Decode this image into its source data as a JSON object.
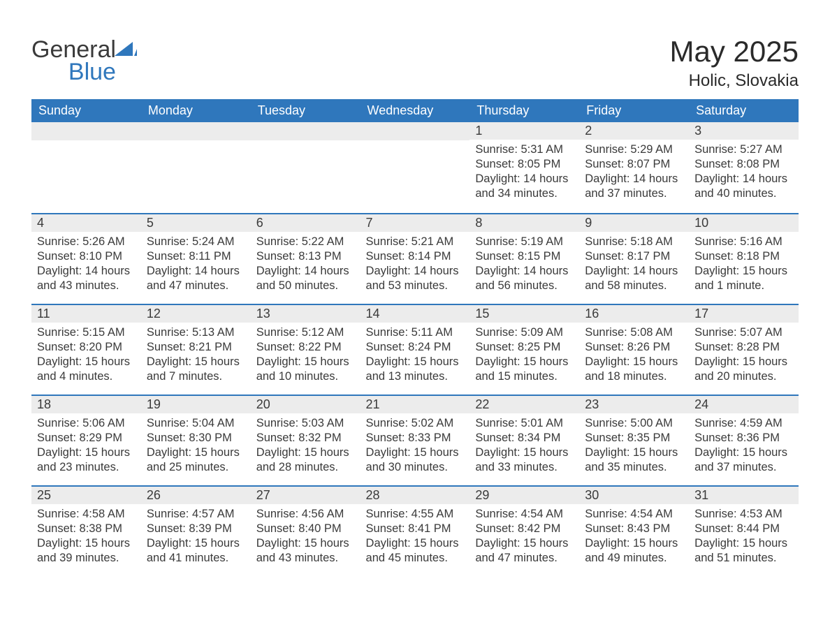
{
  "brand": {
    "general": "General",
    "blue": "Blue",
    "tri_color": "#2f77bc"
  },
  "title": "May 2025",
  "location": "Holic, Slovakia",
  "colors": {
    "header_bg": "#2f77bc",
    "header_text": "#ffffff",
    "daynum_bg": "#ececec",
    "rule": "#2f77bc",
    "text": "#3a3a3a",
    "page_bg": "#ffffff"
  },
  "labels": {
    "sunrise": "Sunrise:",
    "sunset": "Sunset:",
    "daylight": "Daylight:"
  },
  "weekdays": [
    "Sunday",
    "Monday",
    "Tuesday",
    "Wednesday",
    "Thursday",
    "Friday",
    "Saturday"
  ],
  "weeks": [
    [
      null,
      null,
      null,
      null,
      {
        "n": "1",
        "sunrise": "5:31 AM",
        "sunset": "8:05 PM",
        "daylight": "14 hours and 34 minutes."
      },
      {
        "n": "2",
        "sunrise": "5:29 AM",
        "sunset": "8:07 PM",
        "daylight": "14 hours and 37 minutes."
      },
      {
        "n": "3",
        "sunrise": "5:27 AM",
        "sunset": "8:08 PM",
        "daylight": "14 hours and 40 minutes."
      }
    ],
    [
      {
        "n": "4",
        "sunrise": "5:26 AM",
        "sunset": "8:10 PM",
        "daylight": "14 hours and 43 minutes."
      },
      {
        "n": "5",
        "sunrise": "5:24 AM",
        "sunset": "8:11 PM",
        "daylight": "14 hours and 47 minutes."
      },
      {
        "n": "6",
        "sunrise": "5:22 AM",
        "sunset": "8:13 PM",
        "daylight": "14 hours and 50 minutes."
      },
      {
        "n": "7",
        "sunrise": "5:21 AM",
        "sunset": "8:14 PM",
        "daylight": "14 hours and 53 minutes."
      },
      {
        "n": "8",
        "sunrise": "5:19 AM",
        "sunset": "8:15 PM",
        "daylight": "14 hours and 56 minutes."
      },
      {
        "n": "9",
        "sunrise": "5:18 AM",
        "sunset": "8:17 PM",
        "daylight": "14 hours and 58 minutes."
      },
      {
        "n": "10",
        "sunrise": "5:16 AM",
        "sunset": "8:18 PM",
        "daylight": "15 hours and 1 minute."
      }
    ],
    [
      {
        "n": "11",
        "sunrise": "5:15 AM",
        "sunset": "8:20 PM",
        "daylight": "15 hours and 4 minutes."
      },
      {
        "n": "12",
        "sunrise": "5:13 AM",
        "sunset": "8:21 PM",
        "daylight": "15 hours and 7 minutes."
      },
      {
        "n": "13",
        "sunrise": "5:12 AM",
        "sunset": "8:22 PM",
        "daylight": "15 hours and 10 minutes."
      },
      {
        "n": "14",
        "sunrise": "5:11 AM",
        "sunset": "8:24 PM",
        "daylight": "15 hours and 13 minutes."
      },
      {
        "n": "15",
        "sunrise": "5:09 AM",
        "sunset": "8:25 PM",
        "daylight": "15 hours and 15 minutes."
      },
      {
        "n": "16",
        "sunrise": "5:08 AM",
        "sunset": "8:26 PM",
        "daylight": "15 hours and 18 minutes."
      },
      {
        "n": "17",
        "sunrise": "5:07 AM",
        "sunset": "8:28 PM",
        "daylight": "15 hours and 20 minutes."
      }
    ],
    [
      {
        "n": "18",
        "sunrise": "5:06 AM",
        "sunset": "8:29 PM",
        "daylight": "15 hours and 23 minutes."
      },
      {
        "n": "19",
        "sunrise": "5:04 AM",
        "sunset": "8:30 PM",
        "daylight": "15 hours and 25 minutes."
      },
      {
        "n": "20",
        "sunrise": "5:03 AM",
        "sunset": "8:32 PM",
        "daylight": "15 hours and 28 minutes."
      },
      {
        "n": "21",
        "sunrise": "5:02 AM",
        "sunset": "8:33 PM",
        "daylight": "15 hours and 30 minutes."
      },
      {
        "n": "22",
        "sunrise": "5:01 AM",
        "sunset": "8:34 PM",
        "daylight": "15 hours and 33 minutes."
      },
      {
        "n": "23",
        "sunrise": "5:00 AM",
        "sunset": "8:35 PM",
        "daylight": "15 hours and 35 minutes."
      },
      {
        "n": "24",
        "sunrise": "4:59 AM",
        "sunset": "8:36 PM",
        "daylight": "15 hours and 37 minutes."
      }
    ],
    [
      {
        "n": "25",
        "sunrise": "4:58 AM",
        "sunset": "8:38 PM",
        "daylight": "15 hours and 39 minutes."
      },
      {
        "n": "26",
        "sunrise": "4:57 AM",
        "sunset": "8:39 PM",
        "daylight": "15 hours and 41 minutes."
      },
      {
        "n": "27",
        "sunrise": "4:56 AM",
        "sunset": "8:40 PM",
        "daylight": "15 hours and 43 minutes."
      },
      {
        "n": "28",
        "sunrise": "4:55 AM",
        "sunset": "8:41 PM",
        "daylight": "15 hours and 45 minutes."
      },
      {
        "n": "29",
        "sunrise": "4:54 AM",
        "sunset": "8:42 PM",
        "daylight": "15 hours and 47 minutes."
      },
      {
        "n": "30",
        "sunrise": "4:54 AM",
        "sunset": "8:43 PM",
        "daylight": "15 hours and 49 minutes."
      },
      {
        "n": "31",
        "sunrise": "4:53 AM",
        "sunset": "8:44 PM",
        "daylight": "15 hours and 51 minutes."
      }
    ]
  ]
}
